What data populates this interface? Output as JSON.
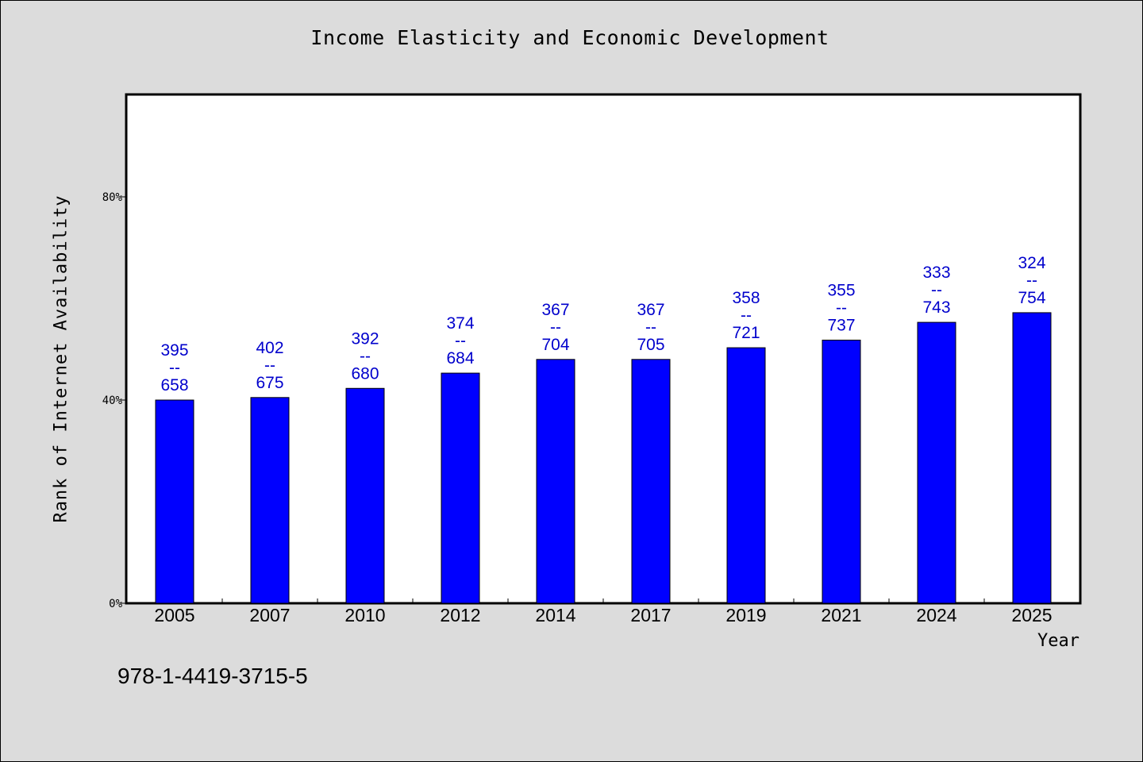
{
  "chart_data": {
    "type": "bar",
    "title": "Income Elasticity and Economic Development",
    "xlabel": "Year",
    "ylabel": "Rank of Internet Availability",
    "categories": [
      "2005",
      "2007",
      "2010",
      "2012",
      "2014",
      "2017",
      "2019",
      "2021",
      "2024",
      "2025"
    ],
    "values": [
      40,
      40.5,
      42.3,
      45.3,
      48,
      48,
      50.3,
      51.8,
      55.3,
      57.2
    ],
    "annotations": [
      [
        "395",
        "--",
        "658"
      ],
      [
        "402",
        "--",
        "675"
      ],
      [
        "392",
        "--",
        "680"
      ],
      [
        "374",
        "--",
        "684"
      ],
      [
        "367",
        "--",
        "704"
      ],
      [
        "367",
        "--",
        "705"
      ],
      [
        "358",
        "--",
        "721"
      ],
      [
        "355",
        "--",
        "737"
      ],
      [
        "333",
        "--",
        "743"
      ],
      [
        "324",
        "--",
        "754"
      ]
    ],
    "ylim": [
      0,
      100
    ],
    "yticks": [
      0,
      40,
      80
    ],
    "ytick_labels": [
      "0%",
      "40%",
      "80%"
    ],
    "grid": false,
    "bar_color": "#0000ff",
    "annotation_color": "#0000cc"
  },
  "footnote": "978-1-4419-3715-5"
}
